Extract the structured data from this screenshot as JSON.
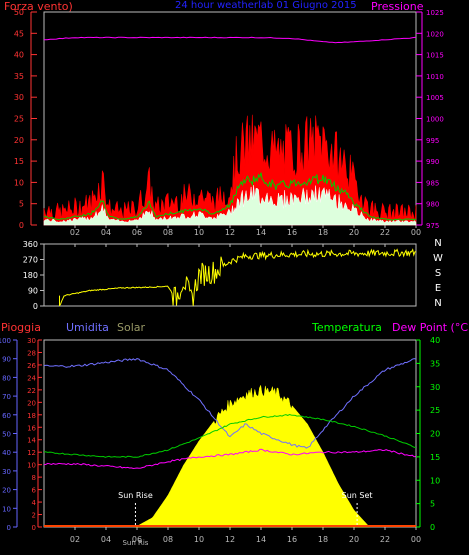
{
  "header": {
    "left_label": "Forza vento)",
    "title": "24 hour weatherlab  01 Giugno 2015",
    "right_label": "Pressione"
  },
  "panel2": {
    "direction_labels": [
      "N",
      "W",
      "S",
      "E",
      "N"
    ]
  },
  "panel3": {
    "labels": {
      "pioggia": "Pioggia",
      "umidita": "Umidita",
      "solar": "Solar",
      "temperatura": "Temperatura",
      "dewpoint": "Dew Point (°C)"
    },
    "annotations": {
      "sunrise": "Sun Rise",
      "sunset": "Sun Set",
      "sunrise_bottom": "Sun Ris"
    }
  },
  "colors": {
    "red": "#ff0000",
    "green": "#00cc00",
    "white": "#ffffff",
    "magenta": "#ff00ff",
    "yellow": "#ffff00",
    "blue": "#7070ff",
    "olive": "#999966",
    "axis_green": "#00ff00",
    "axis_red": "#ff3333",
    "axis_blue": "#6666ff",
    "title_blue": "#2222ff"
  },
  "chart_data": [
    {
      "type": "line",
      "title": "24 hour weatherlab  01 Giugno 2015",
      "x_ticks": [
        "02",
        "04",
        "06",
        "08",
        "10",
        "12",
        "14",
        "16",
        "18",
        "20",
        "22",
        "00"
      ],
      "y_left_ticks": [
        0,
        5,
        10,
        15,
        20,
        25,
        30,
        35,
        40,
        45,
        50
      ],
      "y_left_range": [
        0,
        50
      ],
      "y_right_ticks": [
        975,
        980,
        985,
        990,
        995,
        1000,
        1005,
        1010,
        1015,
        1020,
        1025
      ],
      "y_right_range": [
        975,
        1025
      ],
      "series": [
        {
          "name": "Forza vento)",
          "color": "red",
          "hours": [
            0,
            1,
            2,
            3,
            3.8,
            4.2,
            5,
            6,
            6.8,
            7.2,
            8,
            9,
            10,
            11,
            12,
            12.5,
            13,
            14,
            15,
            16,
            17,
            18,
            19,
            19.5,
            20,
            21,
            22,
            23,
            24
          ],
          "values": [
            3,
            2,
            3,
            4,
            9,
            3,
            2,
            3,
            8,
            3,
            4,
            5,
            6,
            4,
            7,
            14,
            16,
            17,
            14,
            15,
            16,
            17,
            13,
            12,
            8,
            3,
            2,
            2,
            2
          ]
        },
        {
          "name": "Pressione",
          "color": "magenta",
          "hours": [
            0,
            2,
            4,
            6,
            8,
            10,
            12,
            14,
            16,
            18,
            19,
            20,
            22,
            24
          ],
          "values": [
            1018.5,
            1019,
            1019,
            1019,
            1019,
            1019,
            1019,
            1019,
            1018.8,
            1018,
            1017.8,
            1018,
            1018.5,
            1019
          ]
        }
      ]
    },
    {
      "type": "line",
      "x_ticks": [
        "02",
        "04",
        "06",
        "08",
        "10",
        "12",
        "14",
        "16",
        "18",
        "20",
        "22",
        "00"
      ],
      "y_left_ticks": [
        0,
        90,
        180,
        270,
        360
      ],
      "y_range": [
        0,
        360
      ],
      "series": [
        {
          "name": "",
          "color": "yellow",
          "hours": [
            1,
            1.3,
            3,
            5,
            7,
            8,
            8.5,
            9,
            9.5,
            10,
            11,
            12,
            13,
            16,
            20,
            24
          ],
          "values": [
            0,
            60,
            90,
            105,
            110,
            115,
            40,
            160,
            30,
            180,
            200,
            260,
            290,
            300,
            305,
            310
          ]
        }
      ]
    },
    {
      "type": "area",
      "x_ticks": [
        "02",
        "04",
        "06",
        "08",
        "10",
        "12",
        "14",
        "16",
        "18",
        "20",
        "22",
        "00"
      ],
      "axes": {
        "umidita_ticks": [
          0,
          10,
          20,
          30,
          40,
          50,
          60,
          70,
          80,
          90,
          100
        ],
        "pioggia_ticks": [
          0,
          2,
          4,
          6,
          8,
          10,
          12,
          14,
          16,
          18,
          20,
          22,
          24,
          26,
          28,
          30
        ],
        "temperatura_ticks": [
          0,
          5,
          10,
          15,
          20,
          25,
          30,
          35,
          40
        ]
      },
      "series": [
        {
          "name": "Umidita",
          "color": "blue",
          "hours": [
            0,
            2,
            4,
            6,
            8,
            10,
            11,
            12,
            13,
            14,
            16,
            17,
            18,
            20,
            22,
            24
          ],
          "values": [
            86,
            86,
            88,
            90,
            84,
            68,
            58,
            48,
            55,
            50,
            44,
            42,
            52,
            70,
            84,
            90
          ]
        },
        {
          "name": "Temperatura",
          "color": "green",
          "hours": [
            0,
            2,
            4,
            6,
            8,
            10,
            12,
            14,
            16,
            18,
            20,
            22,
            24
          ],
          "values": [
            16,
            15.5,
            15,
            15,
            16.5,
            19,
            22,
            23.5,
            24,
            23,
            21.5,
            19.5,
            17
          ]
        },
        {
          "name": "Dew Point (°C)",
          "color": "magenta",
          "hours": [
            0,
            2,
            4,
            6,
            8,
            10,
            12,
            14,
            16,
            18,
            20,
            22,
            24
          ],
          "values": [
            13.5,
            13.5,
            13,
            12.5,
            14,
            15,
            15.5,
            16.5,
            15.5,
            16,
            16,
            16.5,
            15
          ]
        },
        {
          "name": "Solar",
          "color": "yellow",
          "hours": [
            5.9,
            7,
            8,
            9,
            10,
            11,
            12,
            13,
            14,
            15,
            16,
            17,
            18,
            19,
            20,
            21
          ],
          "values": [
            0,
            5,
            17,
            33,
            46,
            57,
            66,
            71,
            73,
            72,
            65,
            55,
            40,
            23,
            9,
            0
          ]
        },
        {
          "name": "Pioggia",
          "color": "red",
          "hours": [
            0,
            24
          ],
          "values": [
            0,
            0
          ]
        }
      ],
      "annotations": [
        "Sun Rise",
        "Sun Set"
      ]
    }
  ]
}
